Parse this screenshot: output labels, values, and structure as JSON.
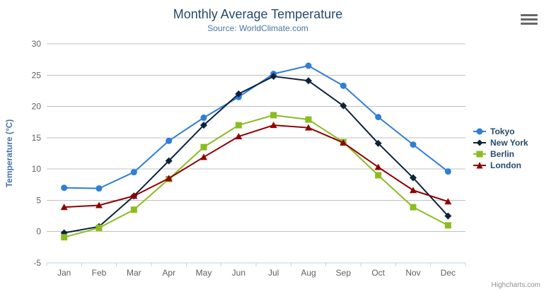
{
  "chart_data": {
    "type": "line",
    "title": "Monthly Average Temperature",
    "subtitle": "Source: WorldClimate.com",
    "xlabel": "",
    "ylabel": "Temperature (°C)",
    "ylim": [
      -5,
      30
    ],
    "ytick_step": 5,
    "grid": true,
    "legend_position": "right-middle-vertical",
    "categories": [
      "Jan",
      "Feb",
      "Mar",
      "Apr",
      "May",
      "Jun",
      "Jul",
      "Aug",
      "Sep",
      "Oct",
      "Nov",
      "Dec"
    ],
    "series": [
      {
        "name": "Tokyo",
        "color": "#2f7ed8",
        "marker": "circle",
        "values": [
          7.0,
          6.9,
          9.5,
          14.5,
          18.2,
          21.5,
          25.2,
          26.5,
          23.3,
          18.3,
          13.9,
          9.6
        ]
      },
      {
        "name": "New York",
        "color": "#0d233a",
        "marker": "diamond",
        "values": [
          -0.2,
          0.8,
          5.7,
          11.3,
          17.0,
          22.0,
          24.8,
          24.1,
          20.1,
          14.1,
          8.6,
          2.5
        ]
      },
      {
        "name": "Berlin",
        "color": "#8bbc21",
        "marker": "square",
        "values": [
          -0.9,
          0.6,
          3.5,
          8.4,
          13.5,
          17.0,
          18.6,
          17.9,
          14.3,
          9.0,
          3.9,
          1.0
        ]
      },
      {
        "name": "London",
        "color": "#910000",
        "marker": "triangle",
        "values": [
          3.9,
          4.2,
          5.7,
          8.5,
          11.9,
          15.2,
          17.0,
          16.6,
          14.2,
          10.3,
          6.6,
          4.8
        ]
      }
    ]
  },
  "credits": {
    "label": "Highcharts.com"
  },
  "colors": {
    "title": "#274b6d",
    "subtitle": "#4d759e",
    "axis_label": "#606060",
    "yaxis_title": "#4572a7",
    "legend_text": "#274b6d",
    "grid_line": "#c0c0c0",
    "axis_line": "#c0d0e0",
    "credits_text": "#909090",
    "menu_icon": "#666666",
    "background": "#ffffff"
  }
}
